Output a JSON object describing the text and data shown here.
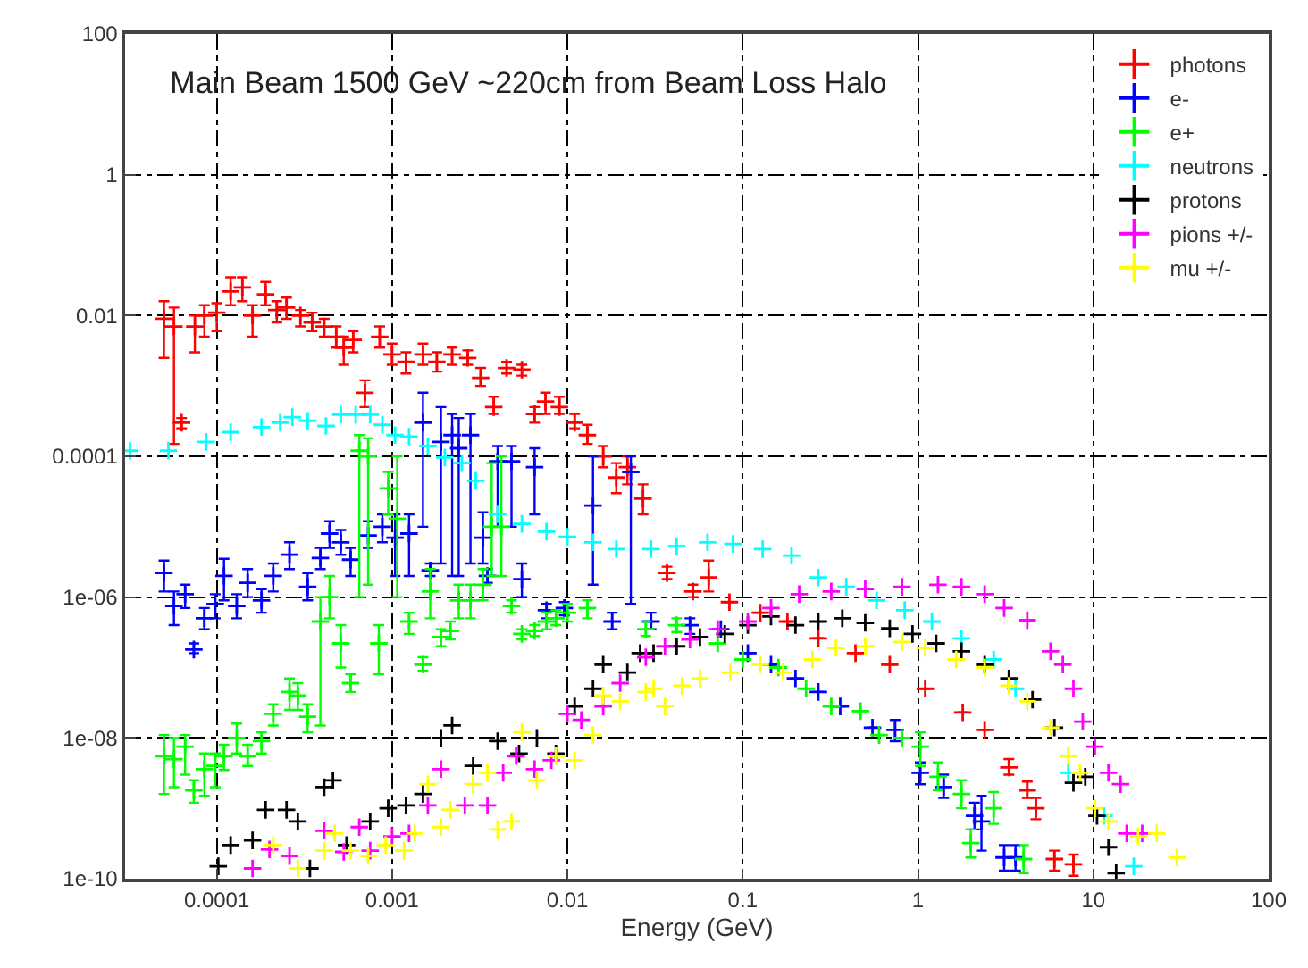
{
  "chart_data": {
    "type": "scatter",
    "title": "Main Beam 1500 GeV ~220cm from Beam Loss Halo",
    "xlabel": "Energy (GeV)",
    "log": "xy",
    "grid": true,
    "legend": "top right",
    "marker": "cross",
    "xlim": [
      3e-05,
      100
    ],
    "xticks": [
      0.0001,
      0.001,
      0.01,
      0.1,
      1,
      10,
      100
    ],
    "ylim": [
      1e-10,
      100
    ],
    "yticks": [
      1e-10,
      1e-08,
      1e-06,
      0.0001,
      0.01,
      1,
      100
    ],
    "series": [
      {
        "name": "photons",
        "color": "#ff0000",
        "x": [
          5e-05,
          5.7e-05,
          6.3e-05,
          7.5e-05,
          8.5e-05,
          0.0001,
          0.00012,
          0.00014,
          0.00016,
          0.00019,
          0.00022,
          0.00025,
          0.0003,
          0.00035,
          0.00041,
          0.00048,
          0.00053,
          0.0006,
          0.0007,
          0.00085,
          0.001,
          0.0012,
          0.0015,
          0.0018,
          0.0022,
          0.0027,
          0.0032,
          0.0038,
          0.0045,
          0.0055,
          0.0065,
          0.0075,
          0.009,
          0.011,
          0.013,
          0.016,
          0.019,
          0.022,
          0.027,
          0.037,
          0.052,
          0.064,
          0.084,
          0.126,
          0.18,
          0.27,
          0.44,
          0.69,
          1.1,
          1.8,
          2.4,
          3.3,
          4.2,
          4.7,
          6.0,
          7.7
        ],
        "values": [
          0.009,
          0.007,
          0.0003,
          0.007,
          0.01,
          0.011,
          0.022,
          0.025,
          0.01,
          0.02,
          0.012,
          0.013,
          0.01,
          0.008,
          0.007,
          0.005,
          0.0035,
          0.0045,
          0.0008,
          0.005,
          0.0028,
          0.0022,
          0.0028,
          0.0022,
          0.0028,
          0.0025,
          0.0013,
          0.0005,
          0.0018,
          0.0017,
          0.0004,
          0.0006,
          0.0005,
          0.0003,
          0.0002,
          0.0001,
          5e-05,
          7e-05,
          2.5e-05,
          2.2e-06,
          1.2e-06,
          1.9e-06,
          8.5e-07,
          6e-07,
          4.5e-07,
          2.6e-07,
          1.6e-07,
          1.1e-07,
          5e-08,
          2.3e-08,
          1.3e-08,
          3.8e-09,
          1.8e-09,
          1e-09,
          1.9e-10,
          1.6e-10
        ],
        "errors": [
          [
            0.0025,
            0.016
          ],
          [
            0.00015,
            0.013
          ],
          [
            0.00025,
            0.00035
          ],
          [
            0.003,
            0.01
          ],
          [
            0.005,
            0.014
          ],
          [
            0.006,
            0.015
          ],
          [
            0.014,
            0.035
          ],
          [
            0.016,
            0.035
          ],
          [
            0.005,
            0.014
          ],
          [
            0.014,
            0.03
          ],
          [
            0.008,
            0.016
          ],
          [
            0.009,
            0.018
          ],
          [
            0.007,
            0.012
          ],
          [
            0.006,
            0.011
          ],
          [
            0.005,
            0.009
          ],
          [
            0.0035,
            0.007
          ],
          [
            0.002,
            0.005
          ],
          [
            0.003,
            0.006
          ],
          [
            0.0005,
            0.0012
          ],
          [
            0.0035,
            0.007
          ],
          [
            0.002,
            0.004
          ],
          [
            0.0015,
            0.003
          ],
          [
            0.002,
            0.004
          ],
          [
            0.0016,
            0.003
          ],
          [
            0.002,
            0.0035
          ],
          [
            0.002,
            0.0032
          ],
          [
            0.001,
            0.0018
          ],
          [
            0.0004,
            0.0007
          ],
          [
            0.0015,
            0.0022
          ],
          [
            0.0014,
            0.002
          ],
          [
            0.0003,
            0.0005
          ],
          [
            0.0004,
            0.0008
          ],
          [
            0.0004,
            0.0007
          ],
          [
            0.00025,
            0.0004
          ],
          [
            0.00015,
            0.00028
          ],
          [
            7e-05,
            0.00014
          ],
          [
            3e-05,
            8e-05
          ],
          [
            4e-05,
            0.0001
          ],
          [
            1.5e-05,
            4e-05
          ],
          [
            1.8e-06,
            2.7e-06
          ],
          [
            1e-06,
            1.5e-06
          ],
          [
            1.2e-06,
            3.3e-06
          ],
          null,
          null,
          null,
          null,
          null,
          null,
          null,
          null,
          null,
          [
            3e-09,
            5e-09
          ],
          [
            1.4e-09,
            2.4e-09
          ],
          [
            7e-10,
            1.4e-09
          ],
          [
            1.3e-10,
            2.5e-10
          ],
          [
            1.1e-10,
            2.2e-10
          ]
        ]
      },
      {
        "name": "e-",
        "color": "#0000ff",
        "x": [
          5e-05,
          5.7e-05,
          6.6e-05,
          7.4e-05,
          8.5e-05,
          9.8e-05,
          0.00011,
          0.00013,
          0.00015,
          0.00018,
          0.00021,
          0.00026,
          0.00033,
          0.00039,
          0.00044,
          0.00051,
          0.00058,
          0.00073,
          0.00088,
          0.00104,
          0.00125,
          0.0015,
          0.00165,
          0.0019,
          0.0022,
          0.0024,
          0.0028,
          0.0033,
          0.0035,
          0.004,
          0.0048,
          0.0055,
          0.0065,
          0.0076,
          0.0096,
          0.014,
          0.018,
          0.023,
          0.03,
          0.05,
          0.075,
          0.107,
          0.145,
          0.2,
          0.27,
          0.36,
          0.55,
          0.74,
          1.03,
          1.4,
          2.1,
          2.3,
          3.1,
          3.6
        ],
        "values": [
          2.2e-06,
          7.5e-07,
          1.1e-06,
          1.8e-07,
          5e-07,
          8e-07,
          2e-06,
          7.5e-07,
          1.6e-06,
          9e-07,
          2e-06,
          4e-06,
          1.4e-06,
          3.6e-06,
          8e-06,
          6e-06,
          3.4e-06,
          7.5e-06,
          1e-05,
          7e-06,
          8e-06,
          0.0003,
          2.4e-06,
          0.00016,
          0.0002,
          0.00013,
          0.0002,
          7e-06,
          2e-06,
          8.5e-05,
          8.5e-05,
          1.8e-06,
          7e-05,
          6.5e-07,
          7e-07,
          2e-05,
          4.5e-07,
          6e-05,
          4.5e-07,
          4e-07,
          3.5e-07,
          1.6e-07,
          1.1e-07,
          7e-08,
          4.5e-08,
          2.8e-08,
          1.4e-08,
          1.3e-08,
          3.2e-09,
          2e-09,
          7.8e-10,
          6.5e-10,
          2e-10,
          2e-10
        ],
        "errors": [
          [
            1.2e-06,
            3.3e-06
          ],
          [
            4e-07,
            1.2e-06
          ],
          [
            7e-07,
            1.5e-06
          ],
          [
            1.6e-07,
            2.2e-07
          ],
          [
            3.5e-07,
            7e-07
          ],
          [
            5e-07,
            1.1e-06
          ],
          [
            9e-07,
            3.5e-06
          ],
          [
            5e-07,
            1.1e-06
          ],
          [
            1e-06,
            2.5e-06
          ],
          [
            6e-07,
            1.3e-06
          ],
          [
            1.2e-06,
            3e-06
          ],
          [
            2.5e-06,
            6e-06
          ],
          [
            9e-07,
            2.2e-06
          ],
          [
            2.5e-06,
            5e-06
          ],
          [
            5e-06,
            1.2e-05
          ],
          [
            4e-06,
            9e-06
          ],
          [
            2e-06,
            5e-06
          ],
          [
            5e-06,
            1.2e-05
          ],
          [
            6e-06,
            1.5e-05
          ],
          [
            2e-06,
            1.5e-05
          ],
          [
            2e-06,
            1.5e-05
          ],
          [
            1e-05,
            0.0008
          ],
          [
            2e-06,
            3e-06
          ],
          [
            3e-06,
            0.0005
          ],
          [
            2e-06,
            0.0004
          ],
          [
            2e-06,
            0.00035
          ],
          [
            3e-06,
            0.0004
          ],
          [
            3e-06,
            1.6e-05
          ],
          [
            1.6e-06,
            2.5e-06
          ],
          [
            1e-05,
            0.00014
          ],
          [
            1e-05,
            0.00014
          ],
          [
            1e-06,
            3e-06
          ],
          [
            1.5e-05,
            0.00013
          ],
          [
            5e-07,
            8e-07
          ],
          [
            5.5e-07,
            8.5e-07
          ],
          [
            1.5e-06,
            0.0001
          ],
          [
            3.5e-07,
            6e-07
          ],
          [
            8e-07,
            0.0001
          ],
          [
            3.5e-07,
            6e-07
          ],
          [
            3e-07,
            5e-07
          ],
          null,
          null,
          null,
          null,
          null,
          null,
          null,
          [
            9e-09,
            1.8e-08
          ],
          [
            2.2e-09,
            4.5e-09
          ],
          [
            1.4e-09,
            3e-09
          ],
          [
            5e-10,
            1.2e-09
          ],
          [
            2.5e-10,
            1.5e-09
          ],
          [
            1.3e-10,
            3e-10
          ],
          [
            1.3e-10,
            3e-10
          ]
        ]
      },
      {
        "name": "e+",
        "color": "#00ff00",
        "x": [
          5e-05,
          5.7e-05,
          6.6e-05,
          7.4e-05,
          8.5e-05,
          9.8e-05,
          0.00011,
          0.00013,
          0.00015,
          0.00018,
          0.00021,
          0.00026,
          0.00029,
          0.00033,
          0.00039,
          0.00044,
          0.00051,
          0.00058,
          0.00065,
          0.00073,
          0.00084,
          0.00095,
          0.00107,
          0.00125,
          0.0015,
          0.00165,
          0.0019,
          0.00215,
          0.0024,
          0.0028,
          0.0033,
          0.0037,
          0.0042,
          0.0048,
          0.0055,
          0.0065,
          0.0076,
          0.0086,
          0.01,
          0.013,
          0.028,
          0.042,
          0.072,
          0.1,
          0.16,
          0.23,
          0.32,
          0.47,
          0.6,
          0.81,
          1.03,
          1.3,
          1.77,
          2.0,
          2.7,
          4.0
        ],
        "values": [
          5.5e-09,
          5e-09,
          7.5e-09,
          1.8e-09,
          3.6e-09,
          4e-09,
          5.5e-09,
          1e-08,
          5.5e-09,
          9e-09,
          2.2e-08,
          4.5e-08,
          4e-08,
          2e-08,
          4.5e-07,
          1e-06,
          2.2e-07,
          6e-08,
          0.00012,
          0.0001,
          2.2e-07,
          3.5e-05,
          1.3e-05,
          4.5e-07,
          1.1e-07,
          1.2e-06,
          2.7e-07,
          3.3e-07,
          9e-07,
          9e-07,
          1.5e-06,
          1e-05,
          1e-05,
          7.5e-07,
          3e-07,
          3.3e-07,
          4.5e-07,
          5e-07,
          6e-07,
          7e-07,
          3.5e-07,
          4e-07,
          2.2e-07,
          1.3e-07,
          1e-07,
          5e-08,
          2.8e-08,
          2.4e-08,
          1.1e-08,
          1e-08,
          7.5e-09,
          2.8e-09,
          1.6e-09,
          3.2e-10,
          1e-09,
          1.9e-10
        ],
        "errors": [
          [
            1.6e-09,
            1.1e-08
          ],
          [
            2e-09,
            1e-08
          ],
          [
            3e-09,
            1.1e-08
          ],
          [
            1.2e-09,
            2.5e-09
          ],
          [
            1.5e-09,
            6e-09
          ],
          [
            2e-09,
            6e-09
          ],
          [
            3.5e-09,
            8e-09
          ],
          [
            6e-09,
            1.6e-08
          ],
          [
            4e-09,
            8e-09
          ],
          [
            6e-09,
            1.2e-08
          ],
          [
            1.5e-08,
            3e-08
          ],
          [
            2.5e-08,
            7e-08
          ],
          [
            2.5e-08,
            6e-08
          ],
          [
            1.2e-08,
            3e-08
          ],
          [
            1.5e-08,
            1e-06
          ],
          [
            5e-07,
            2e-06
          ],
          [
            1e-07,
            4e-07
          ],
          [
            4.5e-08,
            8e-08
          ],
          [
            1e-06,
            0.0002
          ],
          [
            1.5e-06,
            0.00018
          ],
          [
            8e-08,
            4e-07
          ],
          [
            1.5e-05,
            6e-05
          ],
          [
            1e-06,
            0.0001
          ],
          [
            3e-07,
            6e-07
          ],
          [
            9e-08,
            1.4e-07
          ],
          [
            5e-07,
            2.5e-06
          ],
          [
            2e-07,
            3.5e-07
          ],
          [
            2.5e-07,
            4.5e-07
          ],
          [
            5e-07,
            1.5e-06
          ],
          [
            5e-07,
            1.5e-06
          ],
          [
            9e-07,
            2.5e-06
          ],
          [
            2e-06,
            8e-05
          ],
          [
            2e-06,
            0.0001
          ],
          [
            6e-07,
            9e-07
          ],
          [
            2.5e-07,
            3.5e-07
          ],
          [
            2.8e-07,
            4e-07
          ],
          [
            3.5e-07,
            6e-07
          ],
          [
            4e-07,
            6.5e-07
          ],
          [
            4.5e-07,
            8e-07
          ],
          [
            5e-07,
            9e-07
          ],
          [
            2.8e-07,
            4.5e-07
          ],
          [
            3.2e-07,
            5e-07
          ],
          null,
          null,
          null,
          null,
          null,
          null,
          null,
          null,
          [
            4e-09,
            1.2e-08
          ],
          [
            1.8e-09,
            4.5e-09
          ],
          [
            1e-09,
            2.5e-09
          ],
          [
            2e-10,
            5e-10
          ],
          [
            6e-10,
            1.7e-09
          ],
          [
            1.2e-10,
            3e-10
          ]
        ]
      },
      {
        "name": "neutrons",
        "color": "#00ffff",
        "x": [
          3.2e-05,
          5.3e-05,
          8.7e-05,
          0.00012,
          0.00018,
          0.00023,
          0.00027,
          0.00033,
          0.00042,
          0.00051,
          0.00062,
          0.00075,
          0.00088,
          0.00104,
          0.00125,
          0.0016,
          0.002,
          0.0025,
          0.003,
          0.004,
          0.0055,
          0.0076,
          0.01,
          0.014,
          0.019,
          0.03,
          0.042,
          0.063,
          0.088,
          0.13,
          0.19,
          0.27,
          0.39,
          0.58,
          0.84,
          1.2,
          1.77,
          2.7,
          3.6,
          7.2,
          11.5,
          17
        ],
        "values": [
          0.00012,
          0.00012,
          0.00016,
          0.00022,
          0.00026,
          0.0003,
          0.00036,
          0.00032,
          0.00027,
          0.00039,
          0.00039,
          0.00039,
          0.00028,
          0.0002,
          0.00019,
          0.00014,
          9.6e-05,
          8e-05,
          4.5e-05,
          1.5e-05,
          1.1e-05,
          8.5e-06,
          7.2e-06,
          6e-06,
          4.8e-06,
          4.8e-06,
          5.3e-06,
          6e-06,
          5.7e-06,
          4.8e-06,
          3.9e-06,
          1.9e-06,
          1.4e-06,
          9e-07,
          6.5e-07,
          4.5e-07,
          2.6e-07,
          1.3e-07,
          5e-08,
          3.2e-09,
          7.8e-10,
          1.5e-10
        ]
      },
      {
        "name": "protons",
        "color": "#000000",
        "x": [
          0.000102,
          0.00012,
          0.00016,
          0.00019,
          0.00025,
          0.00029,
          0.00034,
          0.00041,
          0.00046,
          0.00055,
          0.00075,
          0.00095,
          0.0012,
          0.0015,
          0.0019,
          0.0022,
          0.0029,
          0.004,
          0.0053,
          0.0067,
          0.0086,
          0.011,
          0.014,
          0.016,
          0.022,
          0.026,
          0.031,
          0.042,
          0.057,
          0.079,
          0.107,
          0.145,
          0.2,
          0.27,
          0.37,
          0.5,
          0.69,
          0.93,
          1.27,
          1.77,
          2.4,
          3.3,
          4.5,
          6,
          7.7,
          9,
          10.5,
          12.2,
          13.5
        ],
        "values": [
          1.5e-10,
          3e-10,
          3.5e-10,
          9.5e-10,
          9.5e-10,
          6.5e-10,
          1.4e-10,
          2e-09,
          2.5e-09,
          3e-10,
          6.5e-10,
          1e-09,
          1.1e-09,
          1.6e-09,
          1e-08,
          1.5e-08,
          4e-09,
          9e-09,
          6e-09,
          1e-08,
          6e-09,
          2.8e-08,
          5e-08,
          1.1e-07,
          8.5e-08,
          1.6e-07,
          1.6e-07,
          2e-07,
          2.7e-07,
          3e-07,
          4e-07,
          5.3e-07,
          4e-07,
          4.5e-07,
          5e-07,
          4.3e-07,
          3.6e-07,
          3e-07,
          2.2e-07,
          1.7e-07,
          1.1e-07,
          7e-08,
          3.5e-08,
          1.4e-08,
          2.3e-09,
          2.8e-09,
          7.8e-10,
          2.8e-10,
          1.2e-10
        ]
      },
      {
        "name": "pions +/-",
        "color": "#ff00ff",
        "x": [
          0.00016,
          0.0002,
          0.00026,
          0.00041,
          0.00053,
          0.00065,
          0.00075,
          0.001,
          0.00125,
          0.0016,
          0.0019,
          0.0026,
          0.0035,
          0.0043,
          0.0051,
          0.0065,
          0.0081,
          0.01,
          0.012,
          0.016,
          0.02,
          0.028,
          0.036,
          0.05,
          0.072,
          0.107,
          0.145,
          0.21,
          0.32,
          0.5,
          0.81,
          1.3,
          1.77,
          2.4,
          3.1,
          4.2,
          5.7,
          6.7,
          7.7,
          8.7,
          10.2,
          12.2,
          14.3,
          15.5,
          19
        ],
        "values": [
          1.4e-10,
          2.6e-10,
          2.1e-10,
          4.8e-10,
          2.4e-10,
          5.4e-10,
          2.5e-10,
          4e-10,
          4.4e-10,
          1.1e-09,
          3.6e-09,
          1.1e-09,
          1.1e-09,
          3.2e-09,
          5.5e-09,
          3.6e-09,
          4.8e-09,
          2.2e-08,
          1.8e-08,
          2.8e-08,
          6e-08,
          1.4e-07,
          2e-07,
          2.5e-07,
          3.5e-07,
          4.5e-07,
          7e-07,
          1.1e-06,
          1.2e-06,
          1.3e-06,
          1.4e-06,
          1.5e-06,
          1.4e-06,
          1.1e-06,
          7e-07,
          4.7e-07,
          1.7e-07,
          1.1e-07,
          5e-08,
          1.7e-08,
          7.5e-09,
          3.2e-09,
          2.2e-09,
          4.4e-10,
          4.4e-10
        ]
      },
      {
        "name": "mu +/-",
        "color": "#ffff00",
        "x": [
          0.00021,
          0.00029,
          0.00041,
          0.00047,
          0.00058,
          0.00073,
          0.00092,
          0.00117,
          0.00135,
          0.0016,
          0.0019,
          0.00215,
          0.0029,
          0.0035,
          0.004,
          0.0048,
          0.0055,
          0.0067,
          0.0086,
          0.011,
          0.014,
          0.016,
          0.02,
          0.028,
          0.031,
          0.036,
          0.045,
          0.057,
          0.085,
          0.126,
          0.17,
          0.25,
          0.34,
          0.5,
          0.81,
          1.1,
          1.65,
          2.4,
          3.3,
          4.2,
          5.7,
          7.2,
          8.4,
          10.2,
          12.2,
          18,
          23,
          30
        ],
        "values": [
          3e-10,
          1.4e-10,
          2.5e-10,
          4.4e-10,
          2.5e-10,
          2.1e-10,
          3e-10,
          2.5e-10,
          4.4e-10,
          2.2e-09,
          5.4e-10,
          9.5e-10,
          2.2e-09,
          3.2e-09,
          5e-10,
          6.5e-10,
          1.2e-08,
          2.5e-09,
          5.5e-09,
          4.8e-09,
          1.1e-08,
          4e-08,
          3.3e-08,
          4.5e-08,
          5e-08,
          2.8e-08,
          5.5e-08,
          7e-08,
          8.5e-08,
          1.1e-07,
          8.5e-08,
          1.3e-07,
          1.9e-07,
          2e-07,
          2.3e-07,
          1.9e-07,
          1.3e-07,
          1e-07,
          5.5e-08,
          3.3e-08,
          1.4e-08,
          5.5e-09,
          3.2e-09,
          1e-09,
          6.5e-10,
          4e-10,
          4.4e-10,
          2e-10
        ]
      }
    ]
  }
}
